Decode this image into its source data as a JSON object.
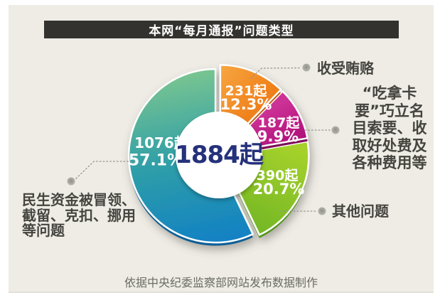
{
  "title": {
    "text": "本网“每月通报”问题类型"
  },
  "chart_data": {
    "type": "pie",
    "title": "本网“每月通报”问题类型",
    "center_total_label": "1884起",
    "total": 1884,
    "unit_suffix": "起",
    "legend_position": "callouts-around-donut",
    "start_angle_deg": 0,
    "direction": "clockwise",
    "series": [
      {
        "name": "收受贿赂",
        "count": 231,
        "percent": 12.3,
        "count_label": "231起",
        "percent_label": "12.3%",
        "color_light": "#f6a43e",
        "color_dark": "#ec6a06",
        "color_rim": "#c2570a"
      },
      {
        "name": "“吃拿卡要”巧立名目索要、收取好处费及各种费用等",
        "count": 187,
        "percent": 9.9,
        "count_label": "187起",
        "percent_label": "9.9%",
        "color_light": "#cc3195",
        "color_dark": "#a80874",
        "color_rim": "#7e0758"
      },
      {
        "name": "其他问题",
        "count": 390,
        "percent": 20.7,
        "count_label": "390起",
        "percent_label": "20.7%",
        "color_light": "#a5d12a",
        "color_dark": "#72b627",
        "color_rim": "#55941c"
      },
      {
        "name": "民生资金被冒领、截留、克扣、挪用等问题",
        "count": 1076,
        "percent": 57.1,
        "count_label": "1076起",
        "percent_label": "57.1%",
        "color_light": "#7ec78f",
        "color_mid": "#2f9fa7",
        "color_dark": "#1180c5",
        "color_rim": "#0b5f96"
      }
    ],
    "source_note": "依据中央纪委监察部网站发布数据制作"
  },
  "callouts": {
    "bribery": "收受贿赂",
    "fees": "“吃拿卡\n要”巧立名\n目索要、收\n取好处费及\n各种费用等",
    "other": "其他问题",
    "livelihood": "民生资金被冒领、\n截留、克扣、挪用\n等问题"
  },
  "caption": {
    "text": "依据中央纪委监察部网站发布数据制作"
  }
}
